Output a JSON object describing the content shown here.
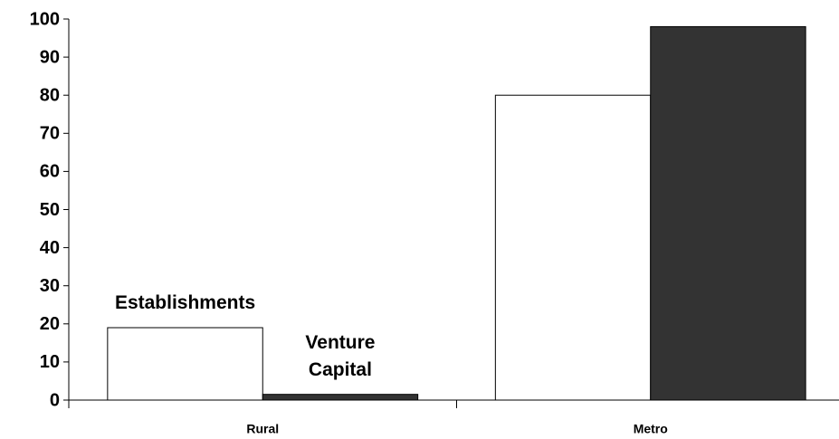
{
  "chart_data": {
    "type": "bar",
    "categories": [
      "Rural",
      "Metro"
    ],
    "series": [
      {
        "name": "Establishments",
        "color": "#ffffff",
        "values": [
          19,
          80
        ]
      },
      {
        "name": "Venture Capital",
        "color": "#333333",
        "values": [
          1.5,
          98
        ]
      }
    ],
    "ylim": [
      0,
      100
    ],
    "yticks": [
      0,
      10,
      20,
      30,
      40,
      50,
      60,
      70,
      80,
      90,
      100
    ],
    "grid": false
  }
}
